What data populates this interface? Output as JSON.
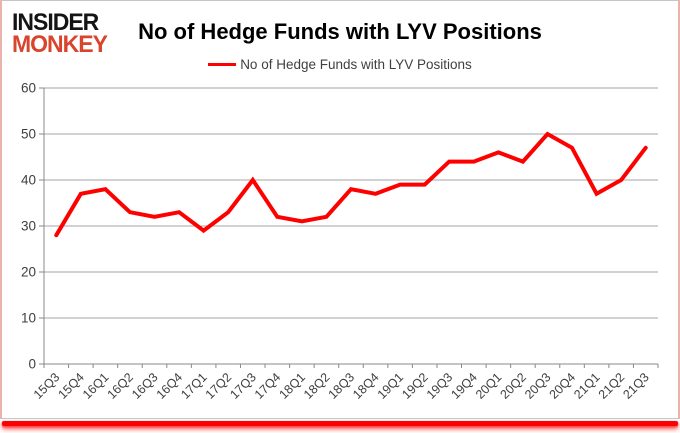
{
  "logo": {
    "line1": "INSIDER",
    "line2": "MONKEY"
  },
  "header": {
    "title": "No of Hedge Funds with LYV Positions"
  },
  "legend": {
    "label": "No of Hedge Funds with LYV Positions"
  },
  "colors": {
    "line": "#fe0000",
    "logo_black": "#141414",
    "logo_red": "#d8442c",
    "grid": "#a6a6a6",
    "axis_text": "#3f3f3f",
    "bottom_bar": "#fb0202"
  },
  "chart_data": {
    "type": "line",
    "title": "No of Hedge Funds with LYV Positions",
    "categories": [
      "15Q3",
      "15Q4",
      "16Q1",
      "16Q2",
      "16Q3",
      "16Q4",
      "17Q1",
      "17Q2",
      "17Q3",
      "17Q4",
      "18Q1",
      "18Q2",
      "18Q3",
      "18Q4",
      "19Q1",
      "19Q2",
      "19Q3",
      "19Q4",
      "20Q1",
      "20Q2",
      "20Q3",
      "20Q4",
      "21Q1",
      "21Q2",
      "21Q3"
    ],
    "series": [
      {
        "name": "No of Hedge Funds with LYV Positions",
        "values": [
          28,
          37,
          38,
          33,
          32,
          33,
          29,
          33,
          40,
          32,
          31,
          32,
          38,
          37,
          39,
          39,
          44,
          44,
          46,
          44,
          50,
          47,
          37,
          40,
          47
        ]
      }
    ],
    "ylim": [
      0,
      60
    ],
    "ytick_step": 10,
    "yticks": [
      0,
      10,
      20,
      30,
      40,
      50,
      60
    ],
    "grid": true,
    "legend_position": "top",
    "xlabel": "",
    "ylabel": ""
  }
}
